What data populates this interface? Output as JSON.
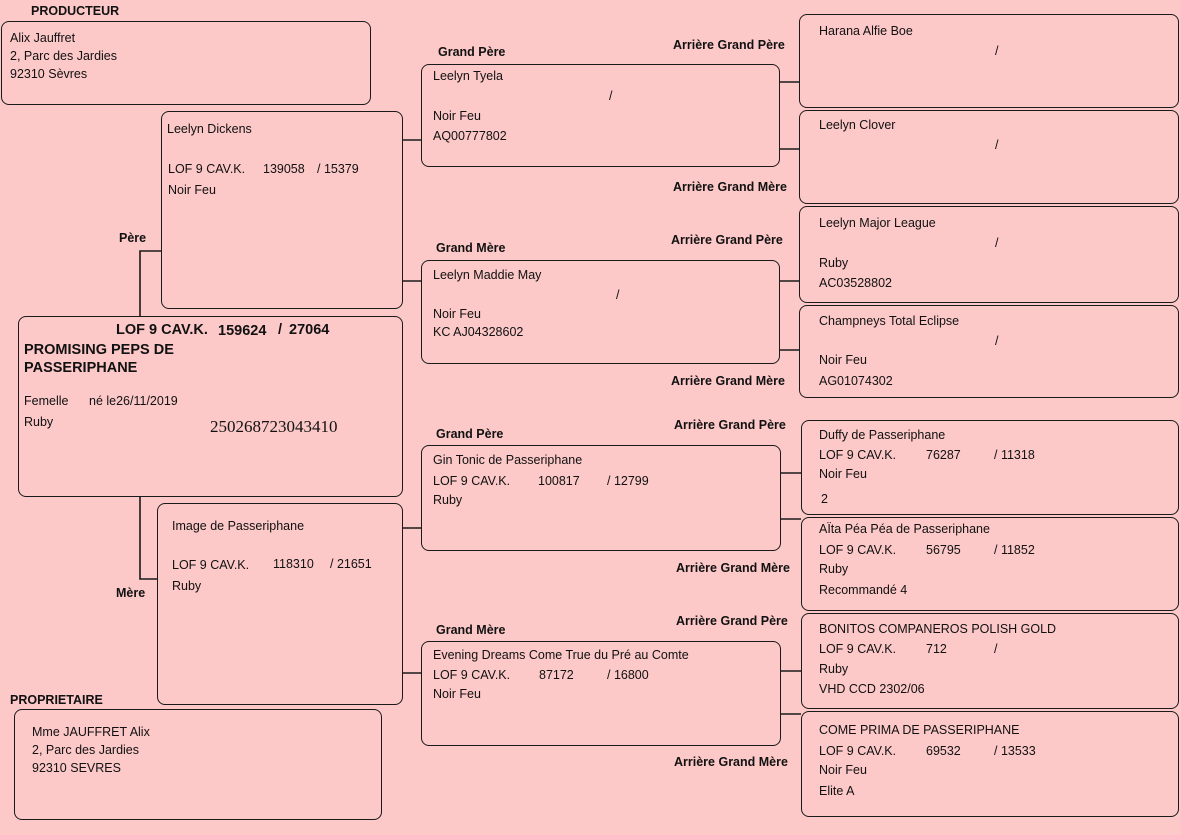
{
  "producer": {
    "heading": "PRODUCTEUR",
    "name": "Alix Jauffret",
    "address": "2, Parc des Jardies",
    "city": "92310 Sèvres"
  },
  "owner": {
    "heading": "PROPRIETAIRE",
    "name": "Mme JAUFFRET Alix",
    "address": "2, Parc des Jardies",
    "city": "92310 SEVRES"
  },
  "subject": {
    "registry": "LOF 9 CAV.K.",
    "number": "159624",
    "sep": "/",
    "number2": "27064",
    "name_line1": "PROMISING PEPS DE",
    "name_line2": "PASSERIPHANE",
    "sex": "Femelle",
    "born": "né le26/11/2019",
    "color": "Ruby",
    "chip": "250268723043410"
  },
  "labels": {
    "father": "Père",
    "mother": "Mère",
    "grandfather": "Grand Père",
    "grandmother": "Grand Mère",
    "ggf": "Arrière Grand Père",
    "ggm": "Arrière Grand Mère"
  },
  "father": {
    "name": "Leelyn Dickens",
    "registry": "LOF 9 CAV.K.",
    "number": "139058",
    "number2": "/ 15379",
    "color": "Noir Feu"
  },
  "mother": {
    "name": "Image de Passeriphane",
    "registry": "LOF 9 CAV.K.",
    "number": "118310",
    "number2": "/ 21651",
    "color": "Ruby"
  },
  "gp1": {
    "name": "Leelyn Tyela",
    "slash": "/",
    "color": "Noir Feu",
    "code": "AQ00777802"
  },
  "gm1": {
    "name": "Leelyn Maddie May",
    "slash": "/",
    "color": "Noir Feu",
    "code": "KC AJ04328602"
  },
  "gp2": {
    "name": "Gin Tonic de Passeriphane",
    "registry": "LOF 9 CAV.K.",
    "number": "100817",
    "number2": "/ 12799",
    "color": "Ruby"
  },
  "gm2": {
    "name": "Evening Dreams Come True du Pré au Comte",
    "registry": "LOF 9 CAV.K.",
    "number": "87172",
    "number2": "/ 16800",
    "color": "Noir Feu"
  },
  "ggp": [
    {
      "name": "Harana Alfie Boe",
      "slash": "/"
    },
    {
      "name": "Leelyn Clover",
      "slash": "/"
    },
    {
      "name": "Leelyn Major League",
      "slash": "/",
      "color": "Ruby",
      "code": "AC03528802"
    },
    {
      "name": "Champneys Total Eclipse",
      "slash": "/",
      "color": "Noir Feu",
      "code": "AG01074302"
    },
    {
      "name": "Duffy de Passeriphane",
      "registry": "LOF 9 CAV.K.",
      "number": "76287",
      "number2": "/ 11318",
      "color": "Noir Feu",
      "extra": "2"
    },
    {
      "name": "AÏta Péa Péa de Passeriphane",
      "registry": "LOF 9 CAV.K.",
      "number": "56795",
      "number2": "/ 11852",
      "color": "Ruby",
      "extra": "Recommandé 4"
    },
    {
      "name": "BONITOS COMPANEROS POLISH GOLD",
      "registry": "LOF 9 CAV.K.",
      "number": "712",
      "number2": "/",
      "color": "Ruby",
      "extra": "VHD CCD 2302/06"
    },
    {
      "name": "COME PRIMA DE PASSERIPHANE",
      "registry": "LOF 9 CAV.K.",
      "number": "69532",
      "number2": "/ 13533",
      "color": "Noir Feu",
      "extra": "Elite A"
    }
  ]
}
